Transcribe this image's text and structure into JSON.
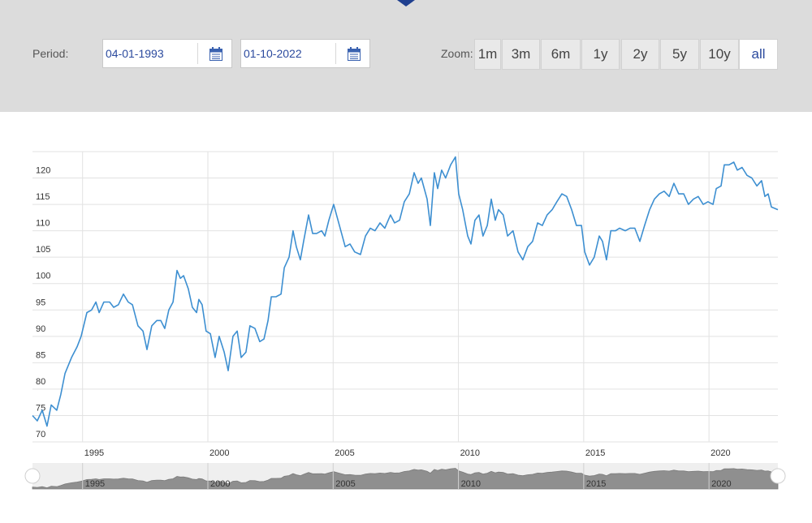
{
  "period_label": "Period:",
  "start_date": "04-01-1993",
  "end_date": "01-10-2022",
  "zoom_label": "Zoom:",
  "zoom_buttons": [
    "1m",
    "3m",
    "6m",
    "1y",
    "2y",
    "5y",
    "10y",
    "all"
  ],
  "active_zoom": "all",
  "chart_data": {
    "type": "line",
    "color": "#3d8fd1",
    "grid": true,
    "xlim": [
      1993.0,
      2022.75
    ],
    "xticks": [
      1995,
      2000,
      2005,
      2010,
      2015,
      2020
    ],
    "ylim": [
      70,
      125
    ],
    "yticks": [
      70,
      75,
      80,
      85,
      90,
      95,
      100,
      105,
      110,
      115,
      120
    ],
    "x": [
      1993.0,
      1993.19,
      1993.39,
      1993.58,
      1993.75,
      1993.97,
      1994.13,
      1994.3,
      1994.56,
      1994.78,
      1994.94,
      1995.17,
      1995.36,
      1995.53,
      1995.66,
      1995.85,
      1996.08,
      1996.24,
      1996.43,
      1996.63,
      1996.82,
      1996.99,
      1997.21,
      1997.41,
      1997.57,
      1997.76,
      1997.96,
      1998.12,
      1998.28,
      1998.44,
      1998.61,
      1998.77,
      1998.9,
      1999.03,
      1999.22,
      1999.38,
      1999.55,
      1999.64,
      1999.77,
      1999.93,
      2000.1,
      2000.29,
      2000.45,
      2000.65,
      2000.81,
      2001.0,
      2001.17,
      2001.33,
      2001.52,
      2001.68,
      2001.88,
      2002.07,
      2002.24,
      2002.4,
      2002.53,
      2002.72,
      2002.92,
      2003.05,
      2003.24,
      2003.4,
      2003.53,
      2003.69,
      2003.82,
      2004.02,
      2004.18,
      2004.34,
      2004.54,
      2004.67,
      2004.83,
      2005.02,
      2005.25,
      2005.48,
      2005.67,
      2005.86,
      2006.09,
      2006.29,
      2006.48,
      2006.67,
      2006.87,
      2007.06,
      2007.29,
      2007.45,
      2007.65,
      2007.84,
      2008.04,
      2008.23,
      2008.39,
      2008.52,
      2008.75,
      2008.88,
      2009.04,
      2009.17,
      2009.33,
      2009.49,
      2009.69,
      2009.88,
      2010.01,
      2010.17,
      2010.37,
      2010.5,
      2010.66,
      2010.82,
      2010.98,
      2011.15,
      2011.31,
      2011.47,
      2011.6,
      2011.79,
      2011.96,
      2012.18,
      2012.38,
      2012.57,
      2012.77,
      2012.96,
      2013.16,
      2013.35,
      2013.54,
      2013.74,
      2013.93,
      2014.13,
      2014.32,
      2014.52,
      2014.71,
      2014.91,
      2015.04,
      2015.23,
      2015.42,
      2015.62,
      2015.75,
      2015.91,
      2016.08,
      2016.27,
      2016.43,
      2016.66,
      2016.85,
      2017.04,
      2017.24,
      2017.43,
      2017.63,
      2017.82,
      2018.02,
      2018.21,
      2018.41,
      2018.6,
      2018.79,
      2018.99,
      2019.18,
      2019.38,
      2019.57,
      2019.77,
      2019.96,
      2020.16,
      2020.29,
      2020.48,
      2020.61,
      2020.8,
      2020.99,
      2021.13,
      2021.32,
      2021.52,
      2021.71,
      2021.91,
      2022.1,
      2022.23,
      2022.36,
      2022.49,
      2022.75
    ],
    "values": [
      75,
      74,
      76,
      73,
      77,
      76,
      79,
      83,
      86,
      88,
      90,
      94.5,
      95,
      96.5,
      94.5,
      96.5,
      96.5,
      95.5,
      96,
      98,
      96.5,
      96,
      92,
      91,
      87.5,
      92,
      93,
      93,
      91.5,
      95,
      96.5,
      102.5,
      101,
      101.5,
      99,
      95.5,
      94.5,
      97,
      96,
      91,
      90.5,
      86,
      90,
      87,
      83.5,
      90,
      91,
      86,
      87,
      92,
      91.5,
      89,
      89.5,
      93,
      97.5,
      97.5,
      98,
      103,
      105,
      110,
      107,
      104.5,
      108,
      113,
      109.5,
      109.5,
      110,
      109,
      112,
      115,
      111,
      107,
      107.5,
      106,
      105.5,
      109,
      110.5,
      110,
      111.5,
      110.5,
      113,
      111.5,
      112,
      115.5,
      117,
      121,
      119,
      120,
      116,
      111,
      121,
      118,
      121.5,
      120,
      122.5,
      124,
      117,
      114,
      109,
      107.5,
      112,
      113,
      109,
      111,
      116,
      112,
      114,
      113,
      109,
      110,
      106,
      104.5,
      107,
      108,
      111.5,
      111,
      113,
      114,
      115.5,
      117,
      116.5,
      114,
      111,
      111,
      106,
      103.5,
      105,
      109,
      108,
      104.5,
      110,
      110,
      110.5,
      110,
      110.5,
      110.5,
      108,
      111,
      114,
      116,
      117,
      117.5,
      116.5,
      119,
      117,
      117,
      115,
      116,
      116.5,
      115,
      115.5,
      115,
      118,
      118.5,
      122.5,
      122.5,
      123,
      121.5,
      122,
      120.5,
      120,
      118.5,
      119.5,
      116.5,
      117,
      114.5,
      114
    ]
  }
}
